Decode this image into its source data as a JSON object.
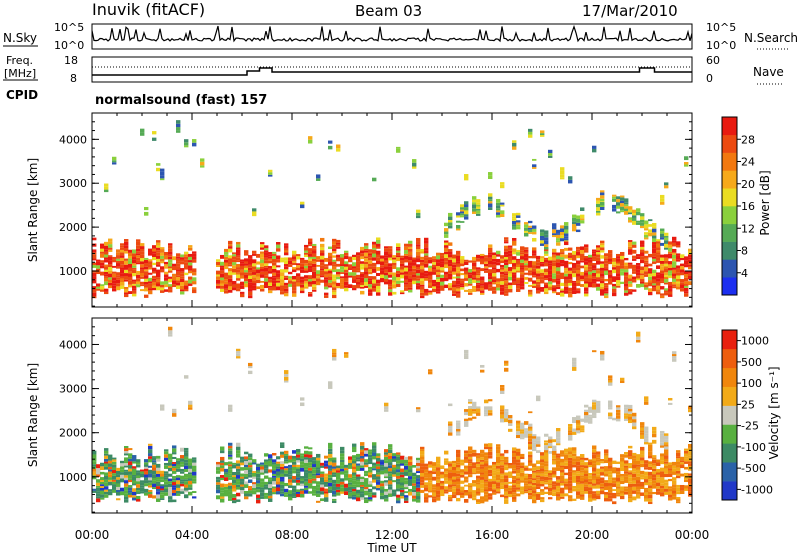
{
  "header": {
    "station": "Inuvik (fitACF)",
    "beam": "Beam 03",
    "date": "17/Mar/2010"
  },
  "noise_panel": {
    "left_label": "N.Sky",
    "right_label": "N.Search",
    "left_ticks": [
      "10^5",
      "10^0"
    ],
    "right_ticks": [
      "10^5",
      "10^0"
    ]
  },
  "freq_panel": {
    "left_label_line1": "Freq.",
    "left_label_line2": "[MHz]",
    "right_label": "Nave",
    "left_ticks": [
      "18",
      "8"
    ],
    "right_ticks": [
      "60",
      "0"
    ],
    "cpid_label": "CPID",
    "cpid_text": "normalsound (fast) 157"
  },
  "chart_data": [
    {
      "type": "heatmap",
      "name": "power",
      "ylabel": "Slant Range [km]",
      "ylim": [
        180,
        4600
      ],
      "yticks": [
        1000,
        2000,
        3000,
        4000
      ],
      "xlim": [
        0,
        24
      ],
      "x_ticks": [
        "00:00",
        "04:00",
        "08:00",
        "12:00",
        "16:00",
        "20:00",
        "00:00"
      ],
      "colorbar": {
        "label": "Power [dB]",
        "ticks": [
          "4",
          "8",
          "12",
          "16",
          "20",
          "24",
          "28"
        ],
        "colors": [
          "#1c2ff0",
          "#2c55b0",
          "#3f8a6a",
          "#55aa55",
          "#8ad03c",
          "#eadc22",
          "#f6a91a",
          "#f2780f",
          "#ec4a10",
          "#e81a10"
        ]
      }
    },
    {
      "type": "heatmap",
      "name": "velocity",
      "ylabel": "Slant Range [km]",
      "ylim": [
        180,
        4600
      ],
      "yticks": [
        1000,
        2000,
        3000,
        4000
      ],
      "xlim": [
        0,
        24
      ],
      "x_ticks": [
        "00:00",
        "04:00",
        "08:00",
        "12:00",
        "16:00",
        "20:00",
        "00:00"
      ],
      "xlabel": "Time UT",
      "colorbar": {
        "label": "Velocity [m s⁻¹]",
        "ticks": [
          "1000",
          "500",
          "100",
          "25",
          "-25",
          "-100",
          "-500",
          "-1000"
        ],
        "colors": [
          "#2038c8",
          "#2a62a8",
          "#3c8a64",
          "#58b040",
          "#c8c8bc",
          "#f2aa18",
          "#f0860c",
          "#ee5e0e",
          "#e8200e"
        ]
      }
    }
  ]
}
